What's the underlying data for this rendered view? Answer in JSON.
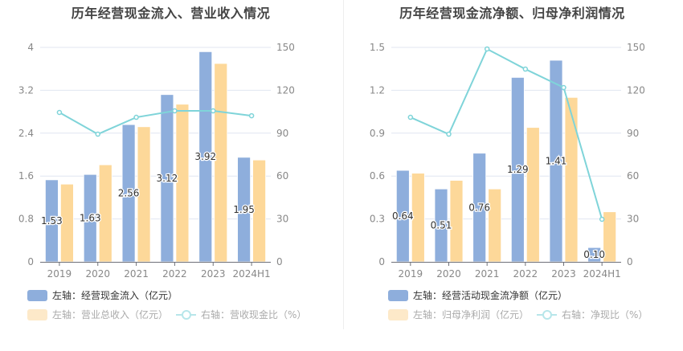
{
  "chart_data": [
    {
      "type": "bar",
      "title": "历年经营现金流入、营业收入情况",
      "categories": [
        "2019",
        "2020",
        "2021",
        "2022",
        "2023",
        "2024H1"
      ],
      "left_axis": {
        "ticks": [
          "0",
          "0.8",
          "1.6",
          "2.4",
          "3.2",
          "4"
        ],
        "range": [
          0,
          4
        ]
      },
      "right_axis": {
        "ticks": [
          "0",
          "30",
          "60",
          "90",
          "120",
          "150"
        ],
        "range": [
          0,
          150
        ]
      },
      "series": [
        {
          "name": "左轴：经营现金流入（亿元）",
          "type": "bar",
          "axis": "left",
          "color": "#8eaedc",
          "values": [
            1.53,
            1.63,
            2.56,
            3.12,
            3.92,
            1.95
          ],
          "labels": [
            "1.53",
            "1.63",
            "2.56",
            "3.12",
            "3.92",
            "1.95"
          ],
          "legend_active": true
        },
        {
          "name": "左轴：营业总收入（亿元）",
          "type": "bar",
          "axis": "left",
          "color": "#fdd899",
          "values": [
            1.45,
            1.81,
            2.52,
            2.94,
            3.7,
            1.9
          ],
          "legend_active": false
        },
        {
          "name": "右轴：营收现金比（%）",
          "type": "line",
          "axis": "right",
          "color": "#7fd4d9",
          "values": [
            104.5,
            89.3,
            101.1,
            105.6,
            105.6,
            102.2
          ],
          "legend_active": false
        }
      ],
      "grid": true,
      "legend_position": "bottom-left"
    },
    {
      "type": "bar",
      "title": "历年经营现金流净额、归母净利润情况",
      "categories": [
        "2019",
        "2020",
        "2021",
        "2022",
        "2023",
        "2024H1"
      ],
      "left_axis": {
        "ticks": [
          "0",
          "0.3",
          "0.6",
          "0.9",
          "1.2",
          "1.5"
        ],
        "range": [
          0,
          1.5
        ]
      },
      "right_axis": {
        "ticks": [
          "0",
          "30",
          "60",
          "90",
          "120",
          "150"
        ],
        "range": [
          0,
          150
        ]
      },
      "series": [
        {
          "name": "左轴：经营活动现金流净额（亿元）",
          "type": "bar",
          "axis": "left",
          "color": "#8eaedc",
          "values": [
            0.64,
            0.51,
            0.76,
            1.29,
            1.41,
            0.1
          ],
          "labels": [
            "0.64",
            "0.51",
            "0.76",
            "1.29",
            "1.41",
            "0.10"
          ],
          "legend_active": true
        },
        {
          "name": "左轴：归母净利润（亿元）",
          "type": "bar",
          "axis": "left",
          "color": "#fdd899",
          "values": [
            0.62,
            0.57,
            0.51,
            0.94,
            1.15,
            0.35
          ],
          "legend_active": false
        },
        {
          "name": "右轴：净现比（%）",
          "type": "line",
          "axis": "right",
          "color": "#7fd4d9",
          "values": [
            101.1,
            89.3,
            148.9,
            134.8,
            121.9,
            29.8
          ],
          "legend_active": false
        }
      ],
      "grid": true,
      "legend_position": "bottom-left"
    }
  ]
}
